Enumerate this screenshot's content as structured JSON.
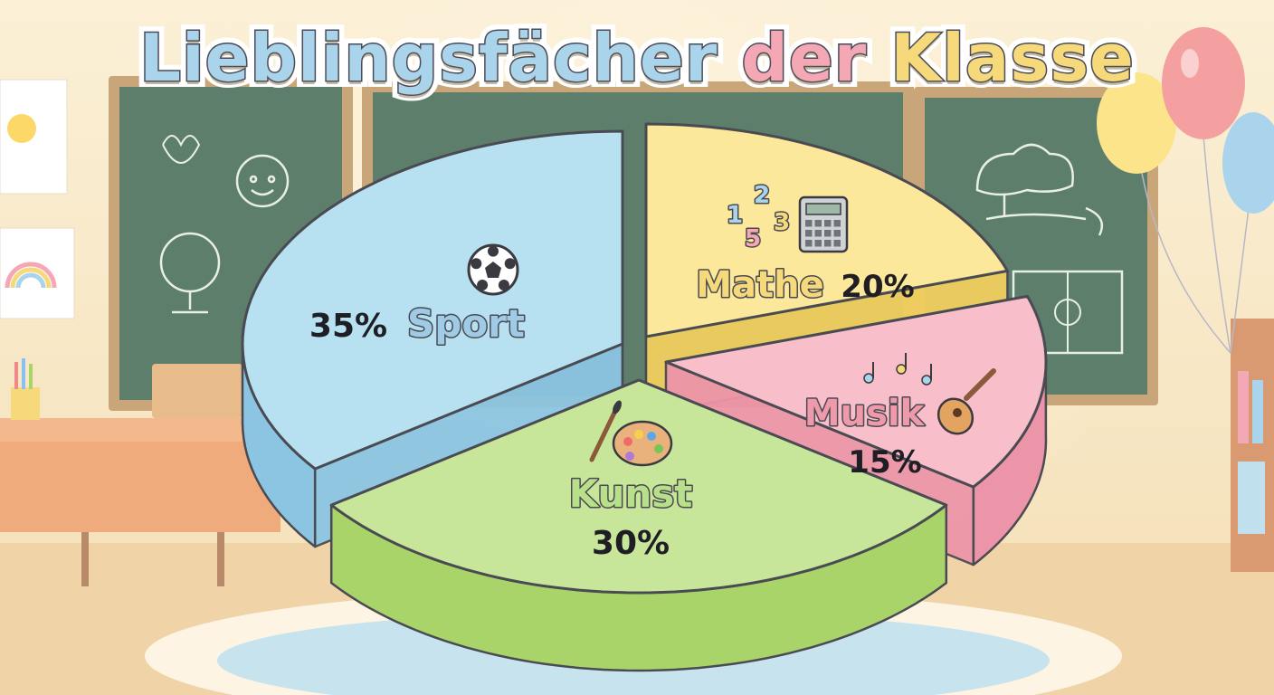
{
  "title": {
    "parts": [
      {
        "text": "Lieblingsfächer",
        "color": "#a9d4ec"
      },
      {
        "text": "der",
        "color": "#f4a7b4"
      },
      {
        "text": "Klasse",
        "color": "#f6d97a"
      }
    ]
  },
  "chart_data": {
    "type": "pie",
    "title": "Lieblingsfächer der Klasse",
    "slices": [
      {
        "label": "Sport",
        "value": 35,
        "display": "35%",
        "color": "#b7e1f1",
        "side_color": "#8cc5e2",
        "text_color": "#9fcbe6",
        "icon": "soccer-ball-icon"
      },
      {
        "label": "Mathe",
        "value": 20,
        "display": "20%",
        "color": "#fbe89a",
        "side_color": "#f0cf5e",
        "text_color": "#f6d97a",
        "icon": "calculator-icon"
      },
      {
        "label": "Musik",
        "value": 15,
        "display": "15%",
        "color": "#f8bfcb",
        "side_color": "#ec95a8",
        "text_color": "#ee9aab",
        "icon": "guitar-icon"
      },
      {
        "label": "Kunst",
        "value": 30,
        "display": "30%",
        "color": "#c8e69a",
        "side_color": "#a9d46a",
        "text_color": "#b8e08a",
        "icon": "paint-palette-icon"
      }
    ],
    "legend": "none"
  },
  "decorations": {
    "mathe_numbers": [
      "1",
      "2",
      "3",
      "5"
    ]
  }
}
